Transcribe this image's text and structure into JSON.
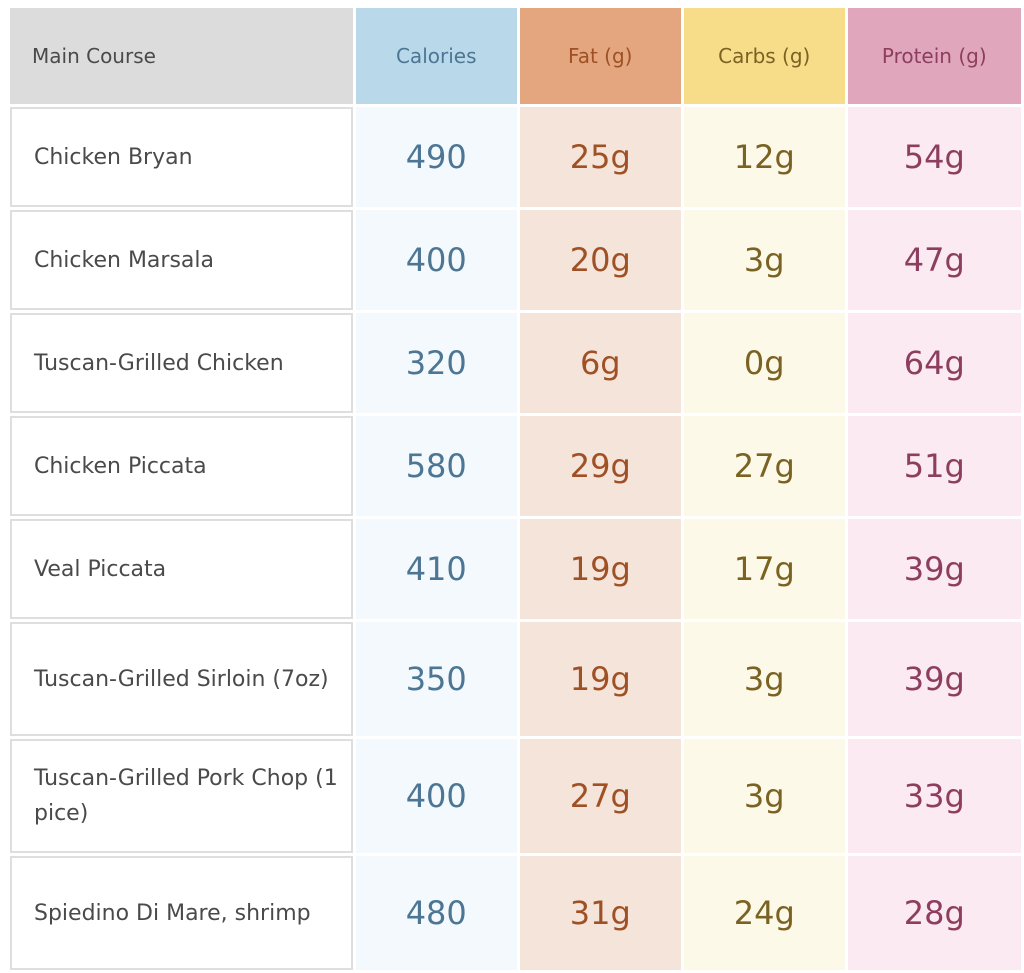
{
  "table": {
    "headers": {
      "course": "Main Course",
      "calories": "Calories",
      "fat": "Fat (g)",
      "carbs": "Carbs (g)",
      "protein": "Protein (g)"
    },
    "rows": [
      {
        "name": "Chicken Bryan",
        "calories": "490",
        "fat": "25g",
        "carbs": "12g",
        "protein": "54g"
      },
      {
        "name": "Chicken Marsala",
        "calories": "400",
        "fat": "20g",
        "carbs": "3g",
        "protein": "47g"
      },
      {
        "name": "Tuscan-Grilled Chicken",
        "calories": "320",
        "fat": "6g",
        "carbs": "0g",
        "protein": "64g"
      },
      {
        "name": "Chicken Piccata",
        "calories": "580",
        "fat": "29g",
        "carbs": "27g",
        "protein": "51g"
      },
      {
        "name": "Veal Piccata",
        "calories": "410",
        "fat": "19g",
        "carbs": "17g",
        "protein": "39g"
      },
      {
        "name": "Tuscan-Grilled Sirloin (7oz)",
        "calories": "350",
        "fat": "19g",
        "carbs": "3g",
        "protein": "39g"
      },
      {
        "name": "Tuscan-Grilled Pork Chop (1 pice)",
        "calories": "400",
        "fat": "27g",
        "carbs": "3g",
        "protein": "33g"
      },
      {
        "name": "Spiedino Di Mare, shrimp",
        "calories": "480",
        "fat": "31g",
        "carbs": "24g",
        "protein": "28g"
      }
    ]
  }
}
